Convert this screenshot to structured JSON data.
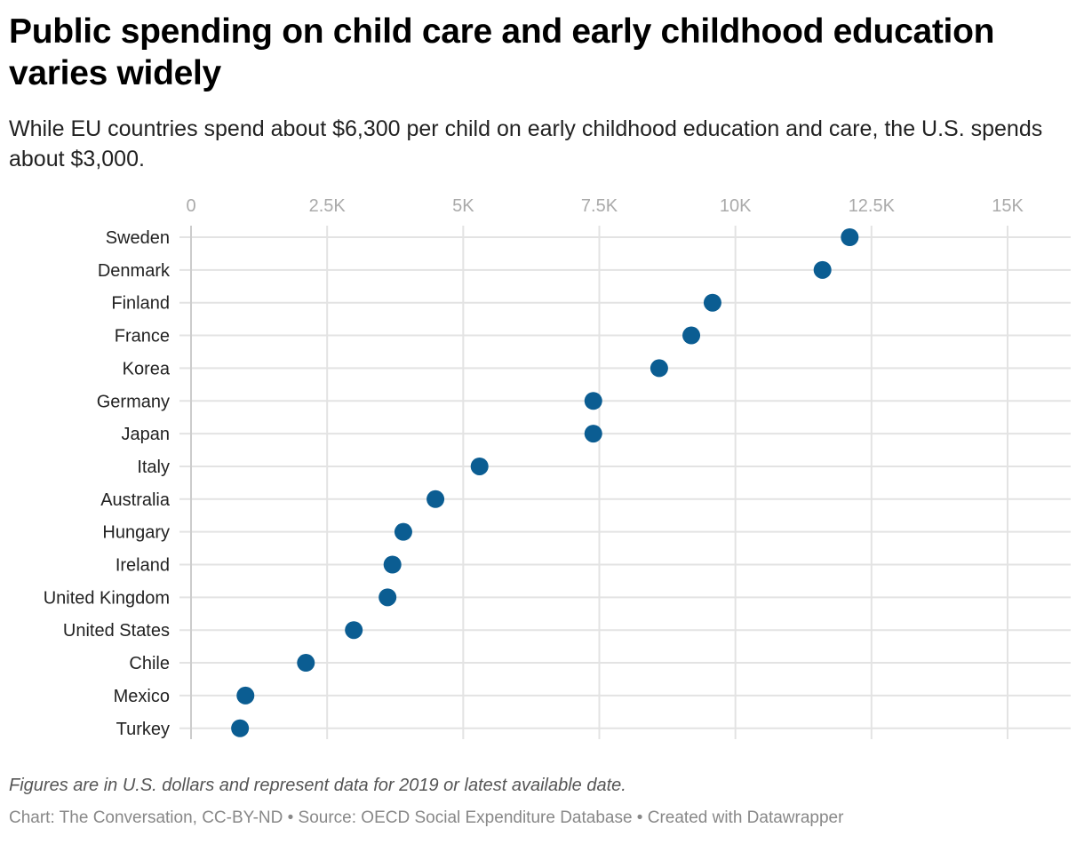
{
  "header": {
    "title": "Public spending on child care and early childhood education varies widely",
    "subtitle": "While EU countries spend about $6,300 per child on early childhood education and care, the U.S. spends about $3,000."
  },
  "footer": {
    "note": "Figures are in U.S. dollars and represent data for 2019 or latest available date.",
    "byline": "Chart: The Conversation, CC-BY-ND • Source: OECD Social Expenditure Database • Created with Datawrapper"
  },
  "chart_data": {
    "type": "scatter",
    "subtype": "dot-plot",
    "title": "Public spending on child care and early childhood education varies widely",
    "xlabel": "",
    "ylabel": "",
    "xlim": [
      0,
      15000
    ],
    "x_ticks": [
      0,
      2500,
      5000,
      7500,
      10000,
      12500,
      15000
    ],
    "x_tick_labels": [
      "0",
      "2.5K",
      "5K",
      "7.5K",
      "10K",
      "12.5K",
      "15K"
    ],
    "grid": true,
    "color": "#0b5d92",
    "categories": [
      "Sweden",
      "Denmark",
      "Finland",
      "France",
      "Korea",
      "Germany",
      "Japan",
      "Italy",
      "Australia",
      "Hungary",
      "Ireland",
      "United Kingdom",
      "United States",
      "Chile",
      "Mexico",
      "Turkey"
    ],
    "values": [
      12100,
      11600,
      9580,
      9190,
      8600,
      7390,
      7390,
      5300,
      4490,
      3900,
      3700,
      3610,
      2990,
      2110,
      1000,
      900
    ]
  }
}
